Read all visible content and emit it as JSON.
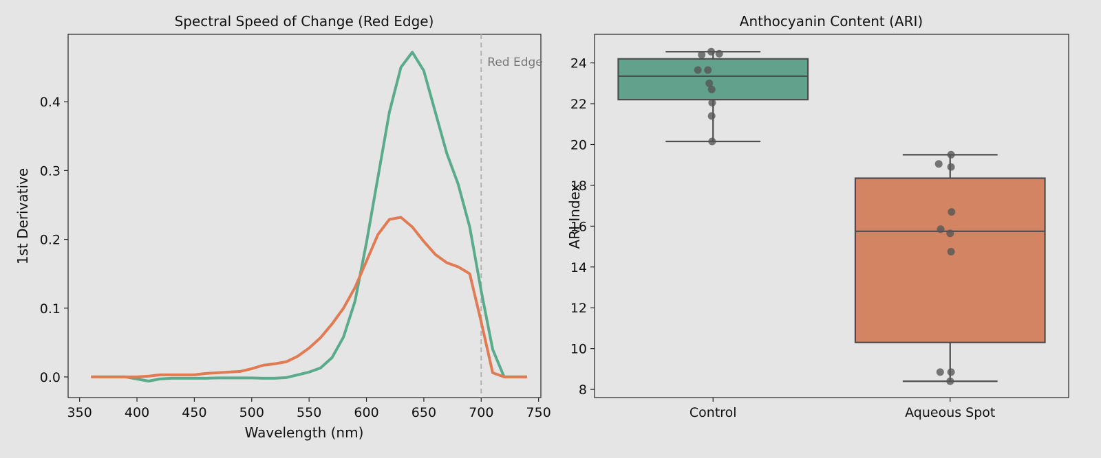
{
  "chart_data": [
    {
      "type": "line",
      "title": "Spectral Speed of Change (Red Edge)",
      "xlabel": "Wavelength (nm)",
      "ylabel": "1st Derivative",
      "xlim": [
        340,
        752
      ],
      "ylim": [
        -0.03,
        0.498
      ],
      "xticks": [
        350,
        400,
        450,
        500,
        550,
        600,
        650,
        700,
        750
      ],
      "yticks": [
        0.0,
        0.1,
        0.2,
        0.3,
        0.4
      ],
      "ytick_labels": [
        "0.0",
        "0.1",
        "0.2",
        "0.3",
        "0.4"
      ],
      "grid": false,
      "reference_line": {
        "x": 700,
        "label": "Red Edge",
        "color": "#b0b0b0"
      },
      "x": [
        360,
        370,
        380,
        390,
        400,
        410,
        420,
        430,
        440,
        450,
        460,
        470,
        480,
        490,
        500,
        510,
        520,
        530,
        540,
        550,
        560,
        570,
        580,
        590,
        600,
        610,
        620,
        630,
        640,
        650,
        660,
        670,
        680,
        690,
        700,
        710,
        720,
        730,
        740
      ],
      "series": [
        {
          "name": "Control",
          "color": "#5aab8b",
          "values": [
            0,
            0,
            0,
            0,
            -0.003,
            -0.006,
            -0.003,
            -0.002,
            -0.002,
            -0.002,
            -0.002,
            -0.0015,
            -0.0015,
            -0.0015,
            -0.0015,
            -0.002,
            -0.002,
            -0.001,
            0.003,
            0.007,
            0.013,
            0.028,
            0.058,
            0.11,
            0.195,
            0.29,
            0.385,
            0.45,
            0.472,
            0.445,
            0.385,
            0.325,
            0.28,
            0.218,
            0.125,
            0.04,
            0,
            0,
            0
          ]
        },
        {
          "name": "Aqueous Spot",
          "color": "#e07b53",
          "values": [
            0,
            0,
            0,
            0,
            0,
            0.001,
            0.003,
            0.003,
            0.003,
            0.003,
            0.005,
            0.006,
            0.007,
            0.008,
            0.012,
            0.017,
            0.019,
            0.022,
            0.03,
            0.042,
            0.057,
            0.077,
            0.1,
            0.13,
            0.168,
            0.207,
            0.229,
            0.232,
            0.218,
            0.197,
            0.178,
            0.166,
            0.16,
            0.15,
            0.08,
            0.006,
            0,
            0,
            0
          ]
        }
      ]
    },
    {
      "type": "box",
      "title": "Anthocyanin Content (ARI)",
      "xlabel": "",
      "ylabel": "ARI Index",
      "categories": [
        "Control",
        "Aqueous Spot"
      ],
      "ylim": [
        7.6,
        25.4
      ],
      "yticks": [
        8,
        10,
        12,
        14,
        16,
        18,
        20,
        22,
        24
      ],
      "grid": false,
      "boxes": [
        {
          "q1": 22.2,
          "median": 23.35,
          "q3": 24.2,
          "whislo": 20.15,
          "whishi": 24.55,
          "color": "#62a18b"
        },
        {
          "q1": 10.3,
          "median": 15.75,
          "q3": 18.35,
          "whislo": 8.4,
          "whishi": 19.5,
          "color": "#d28463"
        }
      ],
      "points": [
        {
          "group": 0,
          "value": 24.55,
          "jitter": -0.004
        },
        {
          "group": 0,
          "value": 24.45,
          "jitter": 0.013
        },
        {
          "group": 0,
          "value": 24.4,
          "jitter": -0.024
        },
        {
          "group": 0,
          "value": 23.65,
          "jitter": -0.032
        },
        {
          "group": 0,
          "value": 23.65,
          "jitter": -0.011
        },
        {
          "group": 0,
          "value": 23.0,
          "jitter": -0.008
        },
        {
          "group": 0,
          "value": 22.7,
          "jitter": -0.003
        },
        {
          "group": 0,
          "value": 22.05,
          "jitter": -0.002
        },
        {
          "group": 0,
          "value": 21.4,
          "jitter": -0.003
        },
        {
          "group": 0,
          "value": 20.15,
          "jitter": -0.002
        },
        {
          "group": 1,
          "value": 19.5,
          "jitter": 0.002
        },
        {
          "group": 1,
          "value": 19.05,
          "jitter": -0.024
        },
        {
          "group": 1,
          "value": 18.9,
          "jitter": 0.002
        },
        {
          "group": 1,
          "value": 16.7,
          "jitter": 0.003
        },
        {
          "group": 1,
          "value": 15.85,
          "jitter": -0.02
        },
        {
          "group": 1,
          "value": 15.65,
          "jitter": 0.0
        },
        {
          "group": 1,
          "value": 14.75,
          "jitter": 0.002
        },
        {
          "group": 1,
          "value": 8.85,
          "jitter": -0.021
        },
        {
          "group": 1,
          "value": 8.85,
          "jitter": 0.002
        },
        {
          "group": 1,
          "value": 8.4,
          "jitter": 0.0
        }
      ]
    }
  ]
}
